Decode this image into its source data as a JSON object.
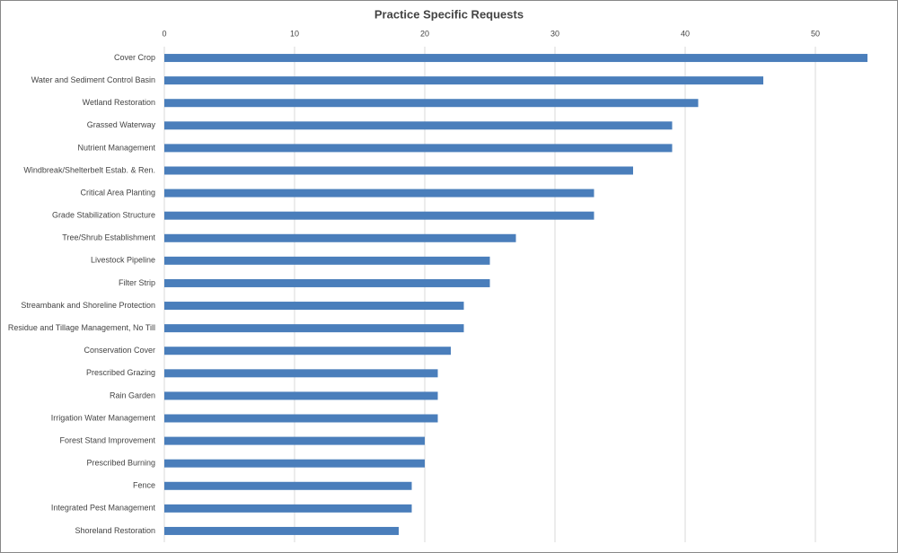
{
  "chart_data": {
    "type": "hbar",
    "title": "Practice Specific Requests",
    "categories": [
      "Cover Crop",
      "Water and Sediment Control Basin",
      "Wetland Restoration",
      "Grassed Waterway",
      "Nutrient Management",
      "Windbreak/Shelterbelt Estab. & Ren.",
      "Critical Area Planting",
      "Grade Stabilization Structure",
      "Tree/Shrub Establishment",
      "Livestock Pipeline",
      "Filter Strip",
      "Streambank and Shoreline Protection",
      "Residue and Tillage Management, No Till",
      "Conservation Cover",
      "Prescribed Grazing",
      "Rain Garden",
      "Irrigation Water Management",
      "Forest Stand Improvement",
      "Prescribed Burning",
      "Fence",
      "Integrated Pest Management",
      "Shoreland Restoration"
    ],
    "values": [
      54,
      46,
      41,
      39,
      39,
      36,
      33,
      33,
      27,
      25,
      25,
      23,
      23,
      22,
      21,
      21,
      21,
      20,
      20,
      19,
      19,
      18
    ],
    "color": "#4a7ebb",
    "xlim": [
      0,
      54
    ],
    "xticks": [
      0,
      10,
      20,
      30,
      40,
      50
    ],
    "grid": true
  }
}
